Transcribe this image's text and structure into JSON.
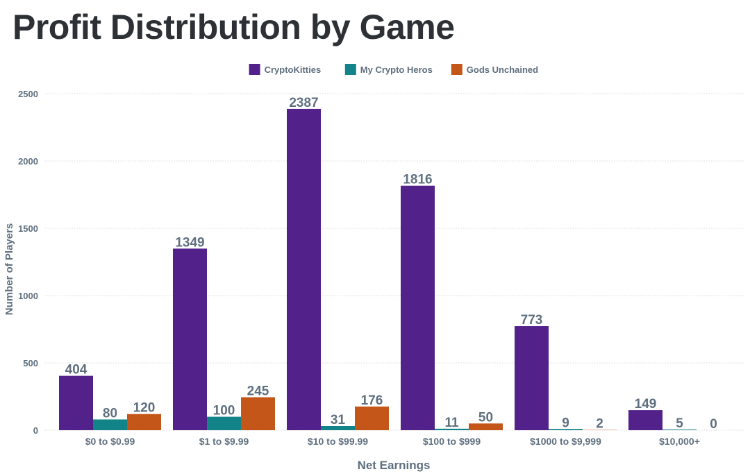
{
  "chart_data": {
    "type": "bar",
    "title": "Profit Distribution by Game",
    "xlabel": "Net Earnings",
    "ylabel": "Number of Players",
    "ylim": [
      0,
      2500
    ],
    "yticks": [
      0,
      500,
      1000,
      1500,
      2000,
      2500
    ],
    "grid": true,
    "legend_position": "top-center",
    "categories": [
      "$0 to $0.99",
      "$1 to $9.99",
      "$10 to $99.99",
      "$100 to $999",
      "$1000 to $9,999",
      "$10,000+"
    ],
    "series": [
      {
        "name": "CryptoKitties",
        "color": "#52218a",
        "values": [
          404,
          1349,
          2387,
          1816,
          773,
          149
        ]
      },
      {
        "name": "My Crypto Heros",
        "color": "#128389",
        "values": [
          80,
          100,
          31,
          11,
          9,
          5
        ]
      },
      {
        "name": "Gods Unchained",
        "color": "#c4561a",
        "values": [
          120,
          245,
          176,
          50,
          2,
          0
        ]
      }
    ]
  },
  "colors": {
    "title": "#2d3135",
    "axis_text": "#5f6f7f",
    "grid": "#d9d9d9",
    "data_label": "#5f6f7f"
  }
}
